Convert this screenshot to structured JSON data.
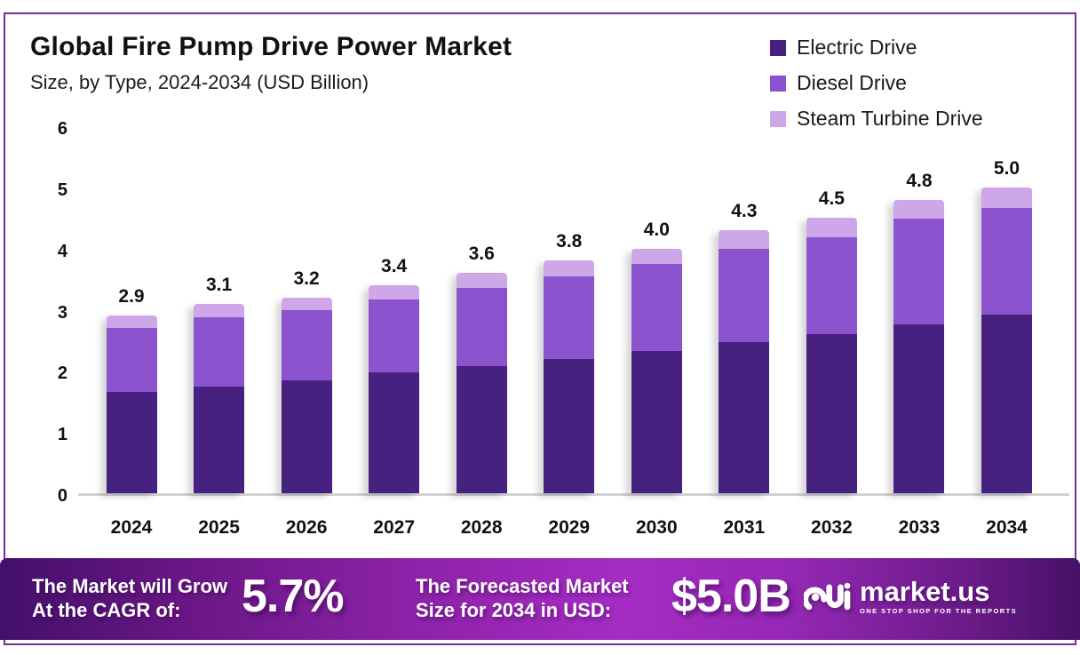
{
  "header": {
    "title": "Global Fire Pump Drive Power Market",
    "subtitle": "Size, by Type, 2024-2034 (USD Billion)"
  },
  "legend": [
    {
      "label": "Electric Drive",
      "color": "#47217f"
    },
    {
      "label": "Diesel Drive",
      "color": "#8b53cd"
    },
    {
      "label": "Steam Turbine Drive",
      "color": "#cda7e8"
    }
  ],
  "chart_data": {
    "type": "bar",
    "stacked": true,
    "title": "Global Fire Pump Drive Power Market Size, by Type, 2024-2034 (USD Billion)",
    "categories": [
      "2024",
      "2025",
      "2026",
      "2027",
      "2028",
      "2029",
      "2030",
      "2031",
      "2032",
      "2033",
      "2034"
    ],
    "series": [
      {
        "name": "Electric Drive",
        "color": "#47217f",
        "values": [
          1.65,
          1.75,
          1.85,
          1.97,
          2.08,
          2.2,
          2.32,
          2.47,
          2.6,
          2.76,
          2.92
        ]
      },
      {
        "name": "Diesel Drive",
        "color": "#8b53cd",
        "values": [
          1.05,
          1.13,
          1.15,
          1.2,
          1.28,
          1.34,
          1.43,
          1.52,
          1.59,
          1.73,
          1.75
        ]
      },
      {
        "name": "Steam Turbine Drive",
        "color": "#cda7e8",
        "values": [
          0.2,
          0.22,
          0.2,
          0.23,
          0.24,
          0.26,
          0.25,
          0.31,
          0.31,
          0.31,
          0.33
        ]
      }
    ],
    "totals": [
      "2.9",
      "3.1",
      "3.2",
      "3.4",
      "3.6",
      "3.8",
      "4.0",
      "4.3",
      "4.5",
      "4.8",
      "5.0"
    ],
    "xlabel": "",
    "ylabel": "",
    "ylim": [
      0,
      6
    ],
    "yticks": [
      0,
      1,
      2,
      3,
      4,
      5,
      6
    ],
    "grid": false,
    "legend_position": "top-right"
  },
  "footer": {
    "cagr_label_line1": "The Market will Grow",
    "cagr_label_line2": "At the CAGR of:",
    "cagr_value": "5.7%",
    "forecast_label_line1": "The Forecasted Market",
    "forecast_label_line2": "Size for 2034 in USD:",
    "forecast_value": "$5.0B",
    "brand_name": "market.us",
    "brand_tagline": "ONE STOP SHOP FOR THE REPORTS"
  }
}
